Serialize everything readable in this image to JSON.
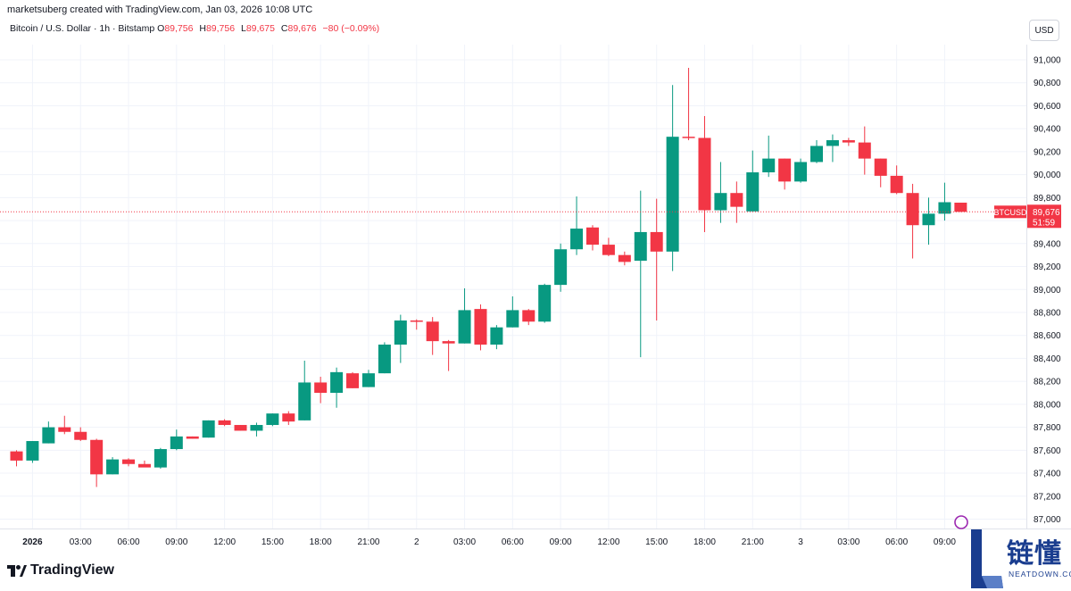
{
  "header": {
    "credit": "marketsuberg created with TradingView.com, Jan 03, 2026 10:08 UTC",
    "symbol_desc": "Bitcoin / U.S. Dollar · 1h · Bitstamp",
    "o_label": "O",
    "o_value": "89,756",
    "h_label": "H",
    "h_value": "89,756",
    "l_label": "L",
    "l_value": "89,675",
    "c_label": "C",
    "c_value": "89,676",
    "change": "−80 (−0.09%)",
    "currency_button": "USD"
  },
  "branding": {
    "logo_text": "TradingView",
    "watermark_cn": "链懂",
    "watermark_en": "NEATDOWN.COM"
  },
  "colors": {
    "up": "#089981",
    "down": "#f23645",
    "grid": "#f0f3fa",
    "axis_text": "#131722"
  },
  "chart_data": {
    "type": "candlestick",
    "title": "Bitcoin / U.S. Dollar · 1h · Bitstamp",
    "ylim": [
      87000,
      91200
    ],
    "y_ticks": [
      87000,
      87200,
      87400,
      87600,
      87800,
      88000,
      88200,
      88400,
      88600,
      88800,
      89000,
      89200,
      89400,
      89600,
      89800,
      90000,
      90200,
      90400,
      90600,
      90800,
      91000
    ],
    "x_ticks": [
      "2026",
      "03:00",
      "06:00",
      "09:00",
      "12:00",
      "15:00",
      "18:00",
      "21:00",
      "2",
      "03:00",
      "06:00",
      "09:00",
      "12:00",
      "15:00",
      "18:00",
      "21:00",
      "3",
      "03:00",
      "06:00",
      "09:00"
    ],
    "x_tick_start_index": 1,
    "x_tick_step": 3,
    "last_price_label": "BTCUSD",
    "last_price": 89676,
    "last_price_text": "89,676",
    "countdown": "51:59",
    "candles": [
      [
        87590,
        87600,
        87460,
        87510
      ],
      [
        87510,
        87680,
        87490,
        87680
      ],
      [
        87660,
        87850,
        87660,
        87800
      ],
      [
        87800,
        87900,
        87740,
        87760
      ],
      [
        87760,
        87800,
        87680,
        87690
      ],
      [
        87690,
        87700,
        87280,
        87390
      ],
      [
        87390,
        87540,
        87390,
        87520
      ],
      [
        87520,
        87530,
        87460,
        87480
      ],
      [
        87480,
        87510,
        87460,
        87450
      ],
      [
        87450,
        87620,
        87440,
        87610
      ],
      [
        87610,
        87780,
        87600,
        87720
      ],
      [
        87720,
        87720,
        87700,
        87700
      ],
      [
        87710,
        87860,
        87710,
        87860
      ],
      [
        87860,
        87870,
        87810,
        87820
      ],
      [
        87820,
        87820,
        87770,
        87770
      ],
      [
        87770,
        87840,
        87720,
        87820
      ],
      [
        87820,
        87920,
        87810,
        87920
      ],
      [
        87920,
        87940,
        87820,
        87850
      ],
      [
        87860,
        88380,
        87860,
        88190
      ],
      [
        88190,
        88240,
        88010,
        88100
      ],
      [
        88100,
        88320,
        87970,
        88280
      ],
      [
        88270,
        88280,
        88140,
        88140
      ],
      [
        88150,
        88300,
        88150,
        88270
      ],
      [
        88270,
        88540,
        88270,
        88520
      ],
      [
        88520,
        88780,
        88360,
        88730
      ],
      [
        88730,
        88740,
        88650,
        88720
      ],
      [
        88720,
        88760,
        88430,
        88550
      ],
      [
        88550,
        88560,
        88290,
        88530
      ],
      [
        88530,
        89010,
        88530,
        88820
      ],
      [
        88830,
        88870,
        88470,
        88520
      ],
      [
        88520,
        88690,
        88480,
        88670
      ],
      [
        88670,
        88940,
        88670,
        88820
      ],
      [
        88820,
        88830,
        88690,
        88720
      ],
      [
        88720,
        89050,
        88710,
        89040
      ],
      [
        89040,
        89400,
        88980,
        89350
      ],
      [
        89350,
        89810,
        89300,
        89530
      ],
      [
        89540,
        89560,
        89340,
        89390
      ],
      [
        89390,
        89450,
        89290,
        89300
      ],
      [
        89300,
        89330,
        89210,
        89240
      ],
      [
        89250,
        89860,
        88410,
        89500
      ],
      [
        89500,
        89790,
        88730,
        89330
      ],
      [
        89330,
        90780,
        89160,
        90330
      ],
      [
        90330,
        90930,
        90300,
        90320
      ],
      [
        90320,
        90510,
        89500,
        89690
      ],
      [
        89690,
        90110,
        89580,
        89840
      ],
      [
        89840,
        89940,
        89580,
        89720
      ],
      [
        89680,
        90210,
        89680,
        90020
      ],
      [
        90020,
        90340,
        89980,
        90140
      ],
      [
        90140,
        90140,
        89870,
        89940
      ],
      [
        89940,
        90140,
        89930,
        90110
      ],
      [
        90110,
        90300,
        90100,
        90250
      ],
      [
        90250,
        90350,
        90110,
        90300
      ],
      [
        90300,
        90320,
        90250,
        90280
      ],
      [
        90280,
        90420,
        90000,
        90140
      ],
      [
        90140,
        90140,
        89890,
        89990
      ],
      [
        89990,
        90080,
        89830,
        89840
      ],
      [
        89840,
        89920,
        89270,
        89560
      ],
      [
        89560,
        89800,
        89390,
        89660
      ],
      [
        89660,
        89930,
        89600,
        89760
      ],
      [
        89756,
        89756,
        89675,
        89676
      ]
    ]
  }
}
